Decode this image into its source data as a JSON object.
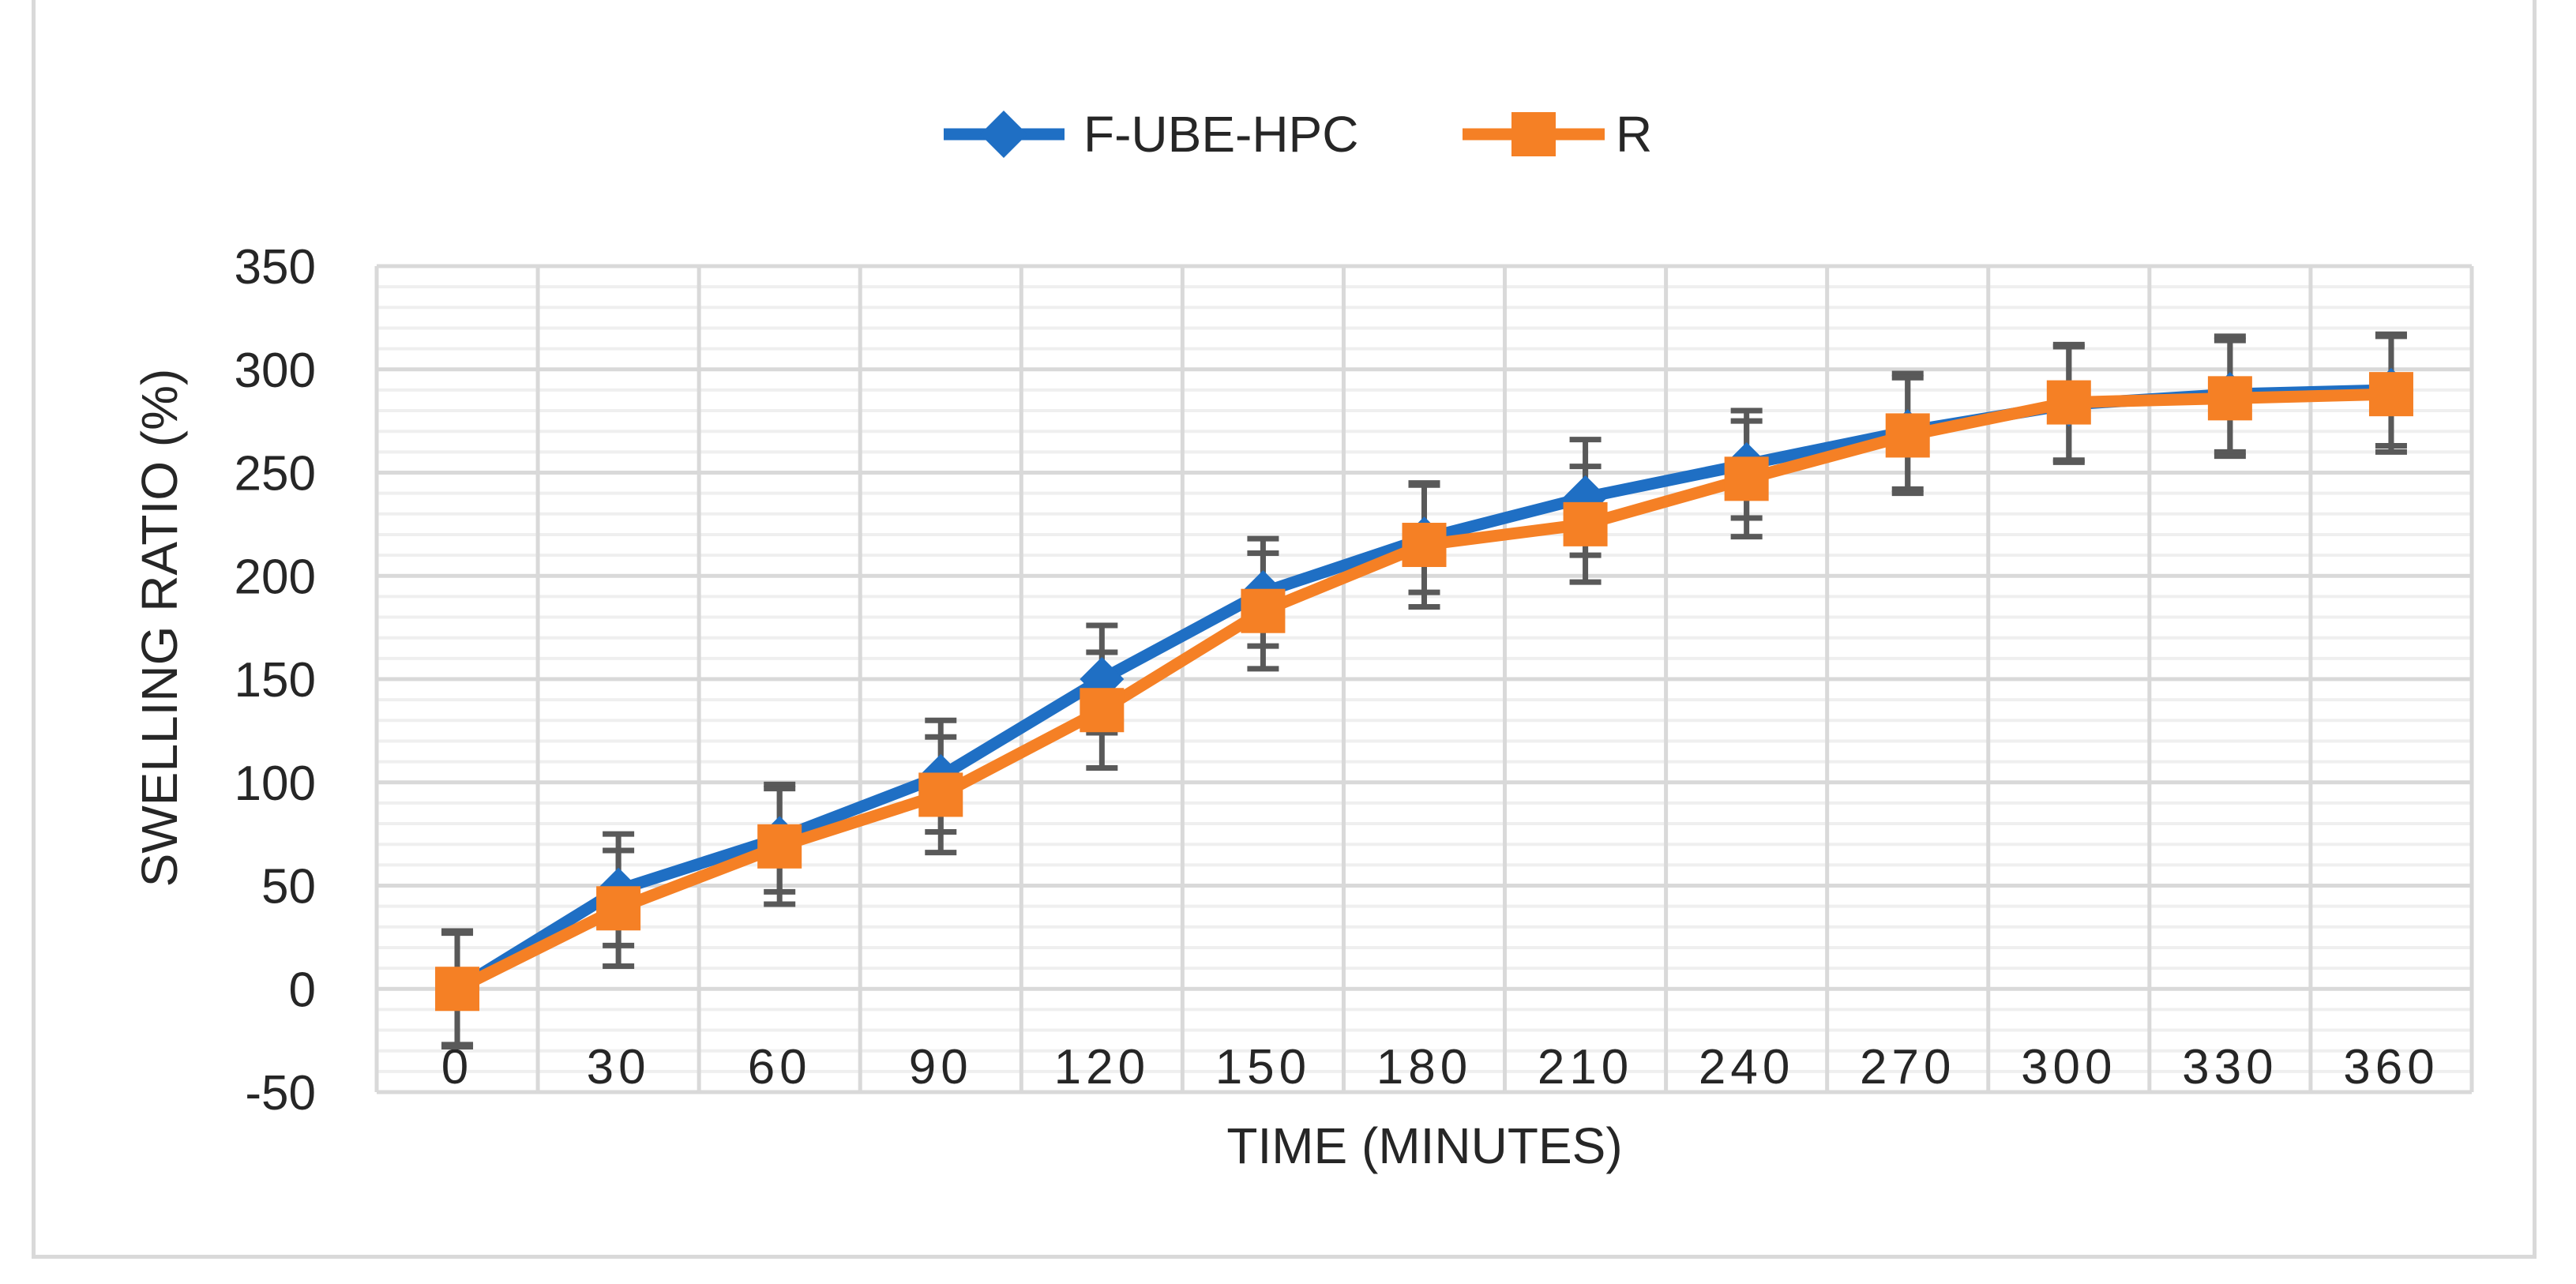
{
  "chart_data": {
    "type": "line",
    "title": "",
    "xlabel": "TIME (MINUTES)",
    "ylabel": "SWELLING RATIO (%)",
    "categories": [
      "0",
      "30",
      "60",
      "90",
      "120",
      "150",
      "180",
      "210",
      "240",
      "270",
      "300",
      "330",
      "360"
    ],
    "x": [
      0,
      30,
      60,
      90,
      120,
      150,
      180,
      210,
      240,
      270,
      300,
      330,
      360
    ],
    "ylim": [
      -50,
      350
    ],
    "yticks": [
      "-50",
      "0",
      "50",
      "100",
      "150",
      "200",
      "250",
      "300",
      "350"
    ],
    "grid": true,
    "legend_position": "top",
    "series": [
      {
        "name": "F-UBE-HPC",
        "color": "#1f6fc4",
        "marker": "diamond",
        "values": [
          0,
          48,
          73,
          103,
          150,
          192,
          218,
          238,
          254,
          270,
          283,
          288,
          290
        ],
        "error": [
          27,
          27,
          26,
          27,
          26,
          26,
          26,
          28,
          26,
          28,
          28,
          28,
          27
        ]
      },
      {
        "name": "R",
        "color": "#f58025",
        "marker": "square",
        "values": [
          0,
          39,
          69,
          94,
          135,
          183,
          215,
          225,
          247,
          268,
          284,
          286,
          288
        ],
        "error": [
          28,
          28,
          28,
          28,
          28,
          28,
          30,
          28,
          28,
          28,
          28,
          28,
          28
        ]
      }
    ]
  }
}
